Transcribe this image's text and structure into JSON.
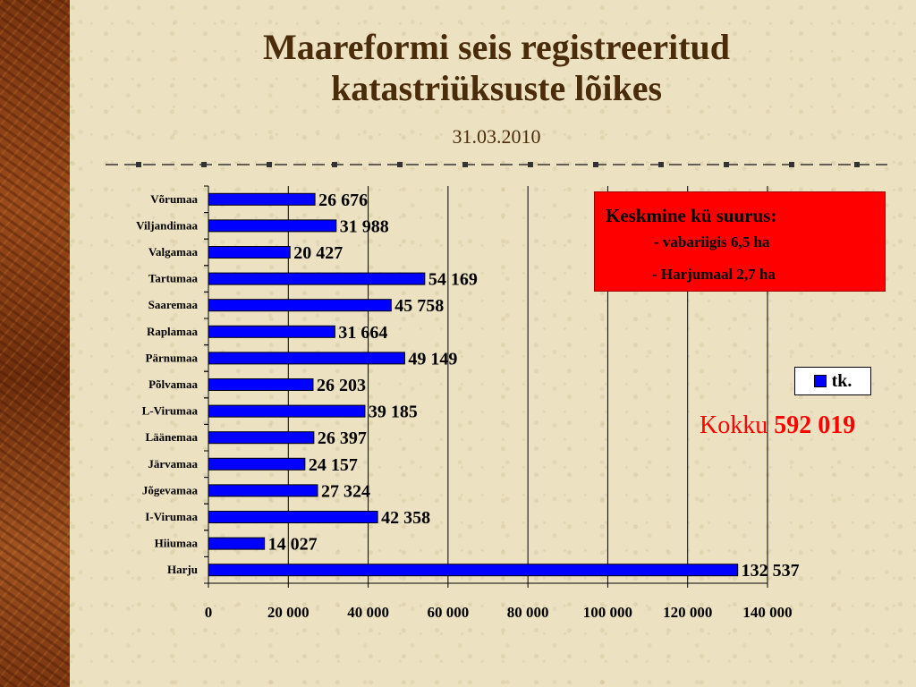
{
  "slide": {
    "title_line1": "Maareformi seis registreeritud",
    "title_line2": "katastriüksuste lõikes",
    "subtitle": "31.03.2010"
  },
  "info_box": {
    "title": "Keskmine kü suurus:",
    "line1": "- vabariigis  6,5 ha",
    "line2": "- Harjumaal  2,7 ha",
    "color": "#ff0000"
  },
  "total": {
    "label": "Kokku",
    "value": "592 019"
  },
  "chart_data": {
    "type": "bar",
    "orientation": "horizontal",
    "categories": [
      "Võrumaa",
      "Viljandimaa",
      "Valgamaa",
      "Tartumaa",
      "Saaremaa",
      "Raplamaa",
      "Pärnumaa",
      "Põlvamaa",
      "L-Virumaa",
      "Läänemaa",
      "Järvamaa",
      "Jõgevamaa",
      "I-Virumaa",
      "Hiiumaa",
      "Harju"
    ],
    "series": [
      {
        "name": "tk.",
        "color": "#0000ff",
        "values": [
          26676,
          31988,
          20427,
          54169,
          45758,
          31664,
          49149,
          26203,
          39185,
          26397,
          24157,
          27324,
          42358,
          14027,
          132537
        ],
        "labels": [
          "26 676",
          "31 988",
          "20 427",
          "54 169",
          "45 758",
          "31 664",
          "49 149",
          "26 203",
          "39 185",
          "26 397",
          "24 157",
          "27 324",
          "42 358",
          "14 027",
          "132 537"
        ]
      }
    ],
    "xlim": [
      0,
      140000
    ],
    "xticks": [
      0,
      20000,
      40000,
      60000,
      80000,
      100000,
      120000,
      140000
    ],
    "xtick_labels": [
      "0",
      "20 000",
      "40 000",
      "60 000",
      "80 000",
      "100 000",
      "120 000",
      "140 000"
    ],
    "grid": true,
    "legend": "right"
  }
}
